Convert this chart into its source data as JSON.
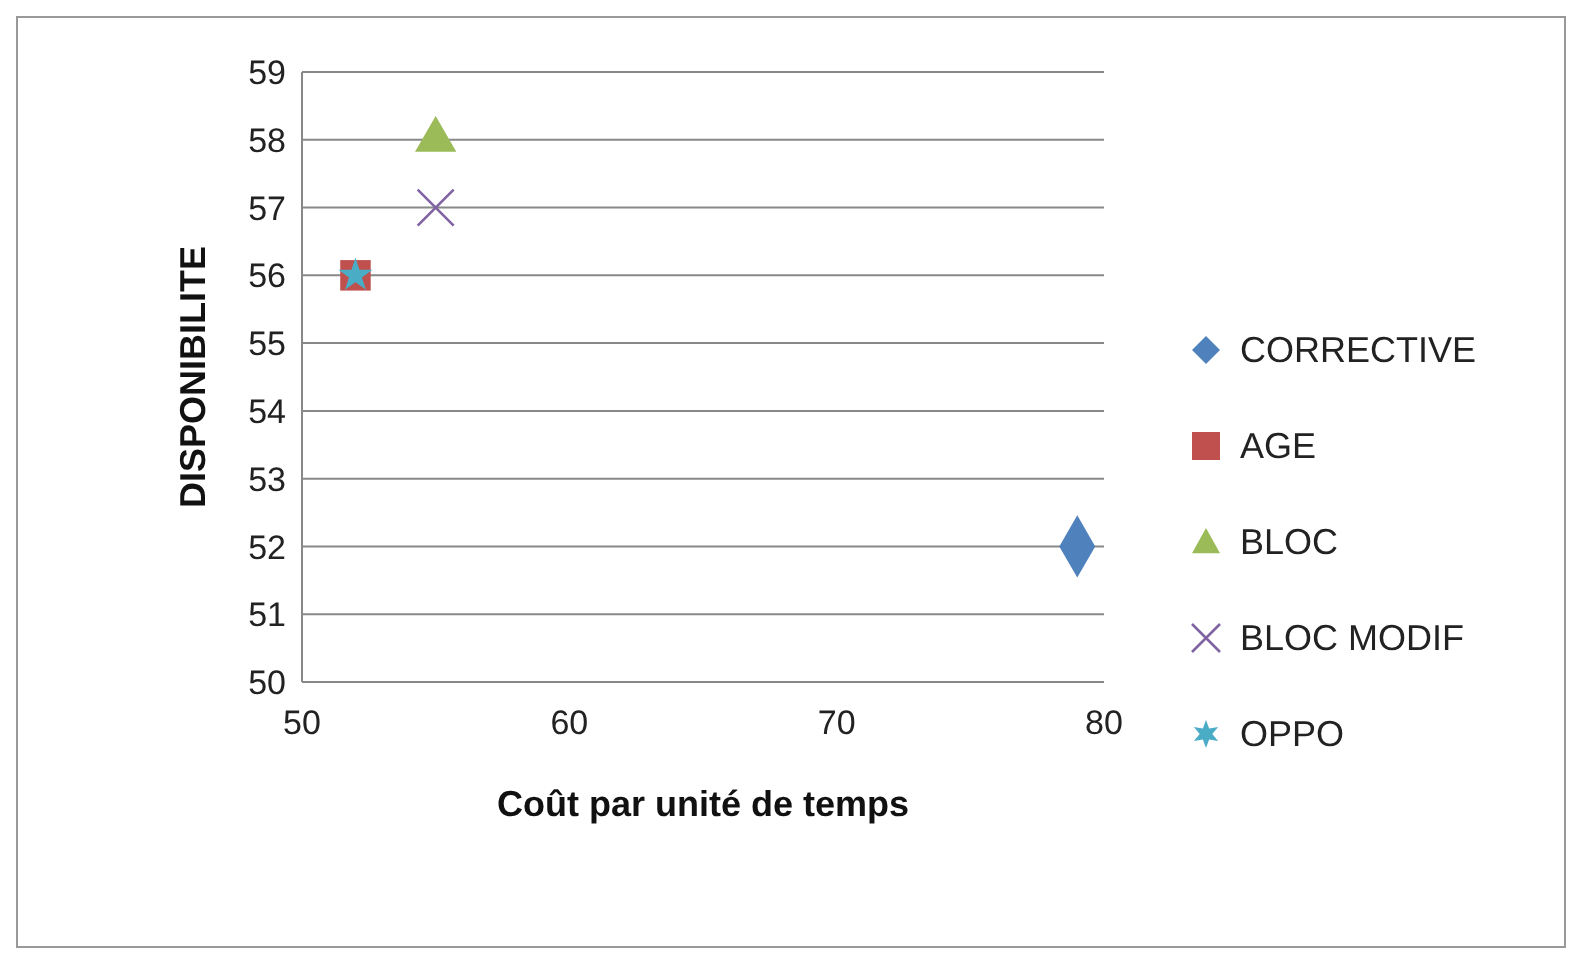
{
  "chart_data": {
    "type": "scatter",
    "xlabel": "Coût par unité de temps",
    "ylabel": "DISPONIBILITE",
    "xlim": [
      50,
      80
    ],
    "xticks": [
      50,
      60,
      70,
      80
    ],
    "ylim": [
      50,
      59
    ],
    "yticks": [
      50,
      51,
      52,
      53,
      54,
      55,
      56,
      57,
      58,
      59
    ],
    "grid": "y",
    "legend": "right",
    "series": [
      {
        "name": "CORRECTIVE",
        "color": "#4f81bd",
        "marker": "diamond",
        "x": [
          79
        ],
        "values": [
          52
        ]
      },
      {
        "name": "AGE",
        "color": "#c0504d",
        "marker": "square",
        "x": [
          52
        ],
        "values": [
          56
        ]
      },
      {
        "name": "BLOC",
        "color": "#9bbb59",
        "marker": "triangle",
        "x": [
          55
        ],
        "values": [
          58
        ]
      },
      {
        "name": "BLOC MODIF",
        "color": "#8064a2",
        "marker": "cross",
        "x": [
          55
        ],
        "values": [
          57
        ]
      },
      {
        "name": "OPPO",
        "color": "#4bacc6",
        "marker": "star",
        "x": [
          52
        ],
        "values": [
          56
        ]
      }
    ]
  }
}
